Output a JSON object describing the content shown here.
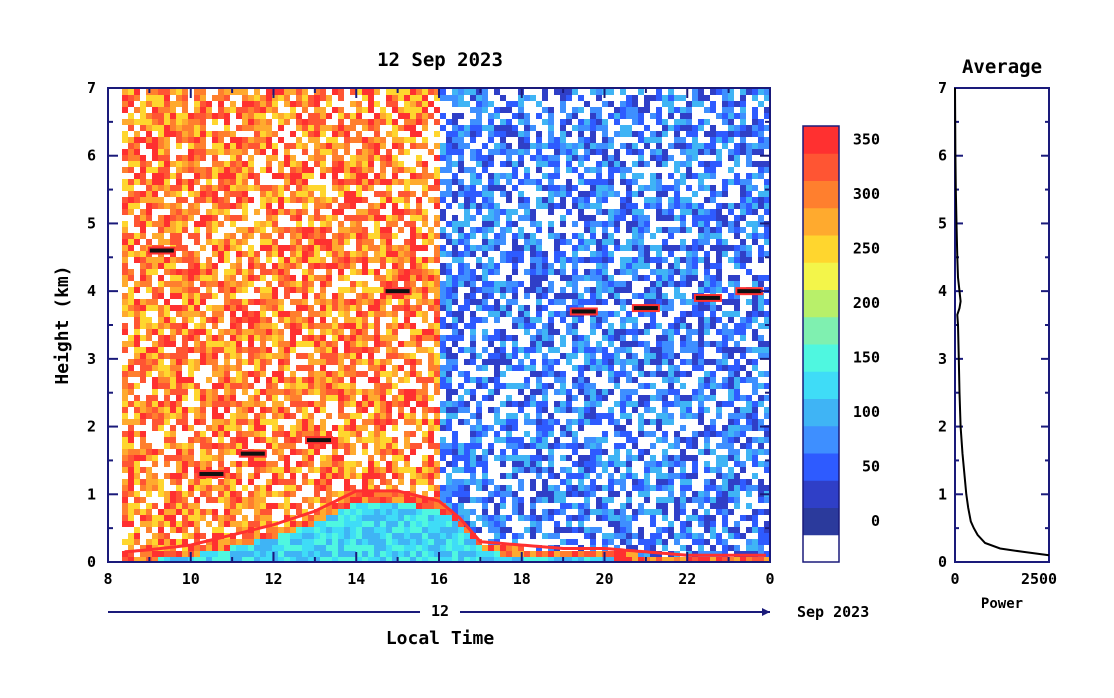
{
  "chart_data": [
    {
      "type": "heatmap",
      "title": "12 Sep 2023",
      "xlabel": "Local Time",
      "ylabel": "Height (km)",
      "x_ticks": [
        "8",
        "10",
        "12",
        "14",
        "16",
        "18",
        "20",
        "22",
        "0"
      ],
      "y_ticks": [
        "0",
        "1",
        "2",
        "3",
        "4",
        "5",
        "6",
        "7"
      ],
      "x_range_hours": [
        8,
        24
      ],
      "y_range_km": [
        0,
        7
      ],
      "date_axis": {
        "day_label": "12",
        "month_label": "Sep 2023"
      },
      "colorbar": {
        "ticks": [
          "0",
          "50",
          "100",
          "150",
          "200",
          "250",
          "300",
          "350"
        ],
        "colors": [
          "#ffffff",
          "#2b3a9c",
          "#2f3fc7",
          "#2e5bff",
          "#3e8fff",
          "#3fb4f5",
          "#3fdcf7",
          "#4ff7e0",
          "#7ff0b0",
          "#b8f06a",
          "#f3f54a",
          "#ffd62e",
          "#ffaa2e",
          "#ff7f2e",
          "#ff5533",
          "#ff3030"
        ]
      },
      "features": [
        {
          "label": "boundary_layer",
          "x": [
            8.4,
            9,
            10,
            11,
            12,
            13,
            14,
            15,
            16,
            16.5,
            17,
            18,
            19,
            20,
            21,
            22,
            23,
            24
          ],
          "y": [
            0.15,
            0.18,
            0.25,
            0.4,
            0.55,
            0.75,
            1.05,
            1.05,
            0.9,
            0.65,
            0.3,
            0.25,
            0.2,
            0.2,
            0.15,
            0.1,
            0.1,
            0.1
          ]
        },
        {
          "label": "cloud_layers",
          "x": [
            9.3,
            10.5,
            11.5,
            13.1,
            15.0,
            19.5,
            21.0,
            22.5,
            23.5
          ],
          "y": [
            4.6,
            1.3,
            1.6,
            1.8,
            4.0,
            3.7,
            3.75,
            3.9,
            4.0
          ]
        }
      ]
    },
    {
      "type": "line",
      "title": "Average",
      "xlabel": "Power",
      "x_ticks": [
        "0",
        "2500"
      ],
      "y_ticks": [
        "0",
        "1",
        "2",
        "3",
        "4",
        "5",
        "6",
        "7"
      ],
      "xlim": [
        0,
        2500
      ],
      "ylim": [
        0,
        7
      ],
      "x": [
        2500,
        1800,
        1200,
        800,
        600,
        500,
        420,
        350,
        300,
        250,
        200,
        150,
        120,
        100,
        80,
        60,
        120,
        150,
        120,
        80,
        60,
        40,
        20,
        10,
        0
      ],
      "y": [
        0.1,
        0.15,
        0.2,
        0.28,
        0.4,
        0.5,
        0.6,
        0.8,
        1.0,
        1.3,
        1.6,
        2.0,
        2.5,
        3.0,
        3.5,
        3.65,
        3.75,
        3.85,
        4.0,
        4.2,
        4.5,
        5.0,
        5.5,
        6.0,
        7.0
      ]
    }
  ]
}
